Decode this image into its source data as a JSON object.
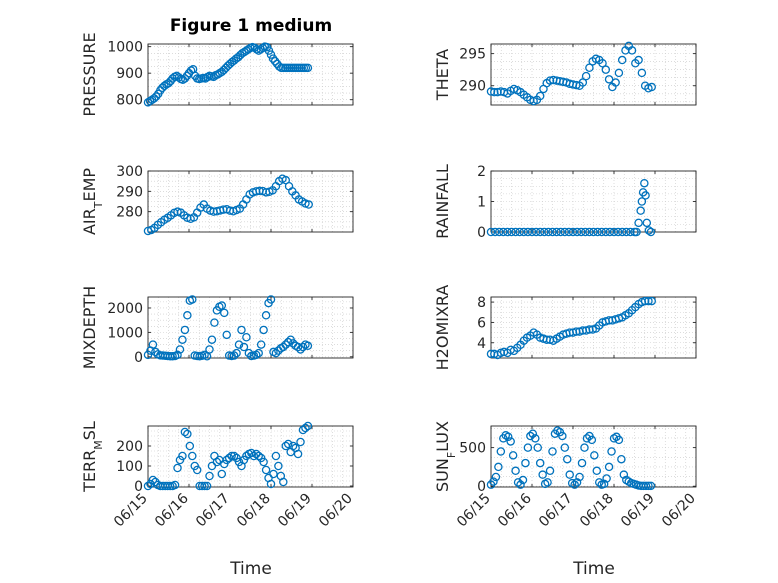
{
  "figure": {
    "title": "Figure 1 medium"
  },
  "colors": {
    "marker": "#0072BD",
    "axis": "#262626",
    "grid": "#c8c8c8"
  },
  "chart_data": [
    {
      "type": "scatter",
      "ylabel": "PRESSURE",
      "ylabel_sub": "",
      "ylabel_tail": "",
      "xlim": [
        0,
        5
      ],
      "ylim": [
        780,
        1010
      ],
      "yticks": [
        800,
        900,
        1000
      ],
      "x_tick_labels": [
        "06/15",
        "06/16",
        "06/17",
        "06/18",
        "06/19",
        "06/20"
      ],
      "grid": true,
      "title": "Figure 1 medium",
      "x": [
        0,
        0.05,
        0.1,
        0.15,
        0.2,
        0.25,
        0.3,
        0.35,
        0.4,
        0.45,
        0.5,
        0.55,
        0.6,
        0.65,
        0.7,
        0.75,
        0.8,
        0.85,
        0.9,
        0.95,
        1.0,
        1.05,
        1.1,
        1.15,
        1.2,
        1.25,
        1.3,
        1.35,
        1.4,
        1.45,
        1.5,
        1.55,
        1.6,
        1.65,
        1.7,
        1.75,
        1.8,
        1.85,
        1.9,
        1.95,
        2.0,
        2.05,
        2.1,
        2.15,
        2.2,
        2.25,
        2.3,
        2.35,
        2.4,
        2.45,
        2.5,
        2.55,
        2.6,
        2.65,
        2.7,
        2.75,
        2.8,
        2.85,
        2.9,
        2.95,
        3.0,
        3.05,
        3.1,
        3.15,
        3.2,
        3.25,
        3.3,
        3.35,
        3.4,
        3.45,
        3.5,
        3.55,
        3.6,
        3.65,
        3.7,
        3.75,
        3.8,
        3.85,
        3.9
      ],
      "y": [
        790,
        795,
        800,
        805,
        812,
        822,
        835,
        845,
        852,
        858,
        862,
        870,
        880,
        886,
        890,
        884,
        878,
        875,
        880,
        890,
        900,
        910,
        915,
        890,
        880,
        878,
        880,
        882,
        880,
        885,
        890,
        888,
        886,
        892,
        895,
        900,
        905,
        912,
        920,
        928,
        935,
        942,
        948,
        955,
        960,
        968,
        975,
        980,
        985,
        990,
        995,
        998,
        996,
        990,
        985,
        990,
        995,
        1000,
        998,
        985,
        970,
        955,
        945,
        935,
        925,
        920,
        920,
        920,
        920,
        920,
        920,
        920,
        920,
        920,
        920,
        920,
        920,
        920,
        920
      ]
    },
    {
      "type": "scatter",
      "ylabel": "THETA",
      "ylabel_sub": "",
      "ylabel_tail": "",
      "xlim": [
        0,
        5
      ],
      "ylim": [
        287,
        296.5
      ],
      "yticks": [
        290,
        295
      ],
      "x_tick_labels": [
        "06/15",
        "06/16",
        "06/17",
        "06/18",
        "06/19",
        "06/20"
      ],
      "grid": true,
      "x": [
        0,
        0.08,
        0.16,
        0.24,
        0.32,
        0.4,
        0.48,
        0.56,
        0.64,
        0.72,
        0.8,
        0.88,
        0.96,
        1.04,
        1.12,
        1.2,
        1.28,
        1.36,
        1.44,
        1.52,
        1.6,
        1.68,
        1.76,
        1.84,
        1.92,
        2.0,
        2.08,
        2.16,
        2.24,
        2.32,
        2.4,
        2.48,
        2.56,
        2.64,
        2.72,
        2.8,
        2.88,
        2.96,
        3.04,
        3.12,
        3.2,
        3.28,
        3.36,
        3.44,
        3.52,
        3.6,
        3.68,
        3.76,
        3.84,
        3.92
      ],
      "y": [
        289.1,
        289,
        289,
        289.1,
        289,
        288.8,
        289.2,
        289.5,
        289.3,
        289,
        288.6,
        288.2,
        287.8,
        287.6,
        287.8,
        288.4,
        289.5,
        290.4,
        290.8,
        290.9,
        290.8,
        290.7,
        290.6,
        290.5,
        290.3,
        290.2,
        290.1,
        290,
        290.5,
        291.5,
        292.8,
        293.8,
        294.2,
        294.0,
        293.5,
        292.5,
        291,
        289.8,
        290.5,
        292,
        294,
        295.5,
        296.2,
        295.5,
        293.5,
        294,
        292,
        290,
        289.6,
        289.8
      ]
    },
    {
      "type": "scatter",
      "ylabel": "AIR",
      "ylabel_sub": "T",
      "ylabel_tail": "EMP",
      "xlim": [
        0,
        5
      ],
      "ylim": [
        270,
        300
      ],
      "yticks": [
        280,
        290,
        300
      ],
      "x_tick_labels": [
        "06/15",
        "06/16",
        "06/17",
        "06/18",
        "06/19",
        "06/20"
      ],
      "grid": true,
      "x": [
        0,
        0.08,
        0.16,
        0.24,
        0.32,
        0.4,
        0.48,
        0.56,
        0.64,
        0.72,
        0.8,
        0.88,
        0.96,
        1.04,
        1.12,
        1.2,
        1.28,
        1.36,
        1.44,
        1.52,
        1.6,
        1.68,
        1.76,
        1.84,
        1.92,
        2.0,
        2.08,
        2.16,
        2.24,
        2.32,
        2.4,
        2.48,
        2.56,
        2.64,
        2.72,
        2.8,
        2.88,
        2.96,
        3.04,
        3.12,
        3.2,
        3.28,
        3.36,
        3.44,
        3.52,
        3.6,
        3.68,
        3.76,
        3.84,
        3.92
      ],
      "y": [
        270.5,
        271,
        272,
        273.5,
        274.8,
        276,
        277,
        278.2,
        279.4,
        280,
        279.5,
        278.2,
        277,
        276.5,
        277.2,
        279.5,
        282,
        283.5,
        281.5,
        280.5,
        280,
        280.2,
        280.6,
        281,
        281.2,
        280.5,
        280.2,
        280.8,
        281.5,
        283.5,
        286,
        288.5,
        289.5,
        290,
        290.2,
        290.1,
        289.5,
        289.8,
        290.5,
        292.5,
        295,
        296.2,
        295.5,
        292.5,
        290,
        288,
        286,
        285,
        284,
        283.5
      ]
    },
    {
      "type": "scatter",
      "ylabel": "RAINFALL",
      "ylabel_sub": "",
      "ylabel_tail": "",
      "xlim": [
        0,
        5
      ],
      "ylim": [
        0,
        2
      ],
      "yticks": [
        0,
        1,
        2
      ],
      "x_tick_labels": [
        "06/15",
        "06/16",
        "06/17",
        "06/18",
        "06/19",
        "06/20"
      ],
      "grid": true,
      "x": [
        0,
        0.1,
        0.2,
        0.3,
        0.4,
        0.5,
        0.6,
        0.7,
        0.8,
        0.9,
        1.0,
        1.1,
        1.2,
        1.3,
        1.4,
        1.5,
        1.6,
        1.7,
        1.8,
        1.9,
        2.0,
        2.1,
        2.2,
        2.3,
        2.4,
        2.5,
        2.6,
        2.7,
        2.8,
        2.9,
        3.0,
        3.1,
        3.2,
        3.3,
        3.4,
        3.5,
        3.55,
        3.6,
        3.65,
        3.68,
        3.71,
        3.74,
        3.77,
        3.8,
        3.85,
        3.9
      ],
      "y": [
        0,
        0,
        0,
        0,
        0,
        0,
        0,
        0,
        0,
        0,
        0,
        0,
        0,
        0,
        0,
        0,
        0,
        0,
        0,
        0,
        0,
        0,
        0,
        0,
        0,
        0,
        0,
        0,
        0,
        0,
        0,
        0,
        0,
        0,
        0,
        0,
        0,
        0.3,
        0.7,
        1.0,
        1.3,
        1.6,
        1.2,
        0.3,
        0.05,
        0
      ]
    },
    {
      "type": "scatter",
      "ylabel": "MIXDEPTH",
      "ylabel_sub": "",
      "ylabel_tail": "",
      "xlim": [
        0,
        5
      ],
      "ylim": [
        -50,
        2450
      ],
      "yticks": [
        0,
        1000,
        2000
      ],
      "x_tick_labels": [
        "06/15",
        "06/16",
        "06/17",
        "06/18",
        "06/19",
        "06/20"
      ],
      "grid": true,
      "x": [
        0,
        0.06,
        0.12,
        0.18,
        0.24,
        0.3,
        0.36,
        0.42,
        0.48,
        0.54,
        0.6,
        0.66,
        0.72,
        0.78,
        0.84,
        0.9,
        0.96,
        1.02,
        1.08,
        1.14,
        1.2,
        1.26,
        1.32,
        1.38,
        1.44,
        1.5,
        1.56,
        1.62,
        1.68,
        1.74,
        1.8,
        1.86,
        1.92,
        1.98,
        2.04,
        2.1,
        2.16,
        2.22,
        2.28,
        2.34,
        2.4,
        2.46,
        2.52,
        2.58,
        2.64,
        2.7,
        2.76,
        2.82,
        2.88,
        2.94,
        3.0,
        3.06,
        3.12,
        3.18,
        3.24,
        3.3,
        3.36,
        3.42,
        3.48,
        3.54,
        3.6,
        3.66,
        3.72,
        3.78,
        3.84,
        3.9
      ],
      "y": [
        80,
        250,
        500,
        200,
        100,
        60,
        50,
        40,
        30,
        20,
        20,
        30,
        80,
        300,
        700,
        1100,
        1700,
        2300,
        2350,
        50,
        30,
        20,
        40,
        80,
        20,
        300,
        700,
        1400,
        1900,
        2050,
        2100,
        1800,
        900,
        50,
        30,
        50,
        150,
        500,
        1100,
        400,
        800,
        150,
        30,
        50,
        80,
        150,
        500,
        1100,
        1700,
        2200,
        2350,
        200,
        150,
        250,
        350,
        400,
        500,
        600,
        700,
        550,
        450,
        400,
        300,
        400,
        500,
        450
      ]
    },
    {
      "type": "scatter",
      "ylabel": "H2OMIXRA",
      "ylabel_sub": "",
      "ylabel_tail": "",
      "xlim": [
        0,
        5
      ],
      "ylim": [
        2.5,
        8.5
      ],
      "yticks": [
        4,
        6,
        8
      ],
      "x_tick_labels": [
        "06/15",
        "06/16",
        "06/17",
        "06/18",
        "06/19",
        "06/20"
      ],
      "grid": true,
      "x": [
        0,
        0.08,
        0.16,
        0.24,
        0.32,
        0.4,
        0.48,
        0.56,
        0.64,
        0.72,
        0.8,
        0.88,
        0.96,
        1.04,
        1.12,
        1.2,
        1.28,
        1.36,
        1.44,
        1.52,
        1.6,
        1.68,
        1.76,
        1.84,
        1.92,
        2.0,
        2.08,
        2.16,
        2.24,
        2.32,
        2.4,
        2.48,
        2.56,
        2.64,
        2.72,
        2.8,
        2.88,
        2.96,
        3.04,
        3.12,
        3.2,
        3.28,
        3.36,
        3.44,
        3.52,
        3.6,
        3.68,
        3.76,
        3.84,
        3.92
      ],
      "y": [
        2.9,
        2.9,
        2.8,
        3.0,
        3.1,
        3.0,
        3.3,
        3.2,
        3.5,
        3.8,
        4.2,
        4.5,
        4.7,
        5.0,
        4.8,
        4.5,
        4.4,
        4.3,
        4.3,
        4.2,
        4.4,
        4.6,
        4.8,
        4.9,
        5.0,
        5.0,
        5.1,
        5.1,
        5.2,
        5.2,
        5.3,
        5.3,
        5.4,
        5.7,
        6.0,
        6.1,
        6.2,
        6.2,
        6.3,
        6.4,
        6.5,
        6.7,
        6.9,
        7.2,
        7.5,
        7.8,
        8.0,
        8.1,
        8.1,
        8.1
      ]
    },
    {
      "type": "scatter",
      "ylabel": "TERR",
      "ylabel_sub": "M",
      "ylabel_tail": "SL",
      "xlim": [
        0,
        5
      ],
      "ylim": [
        -5,
        300
      ],
      "yticks": [
        0,
        100,
        200
      ],
      "x_tick_labels": [
        "06/15",
        "06/16",
        "06/17",
        "06/18",
        "06/19",
        "06/20"
      ],
      "grid": true,
      "x": [
        0,
        0.06,
        0.12,
        0.18,
        0.24,
        0.3,
        0.36,
        0.42,
        0.48,
        0.54,
        0.6,
        0.66,
        0.72,
        0.78,
        0.84,
        0.9,
        0.96,
        1.02,
        1.08,
        1.14,
        1.2,
        1.26,
        1.32,
        1.38,
        1.44,
        1.5,
        1.56,
        1.62,
        1.68,
        1.74,
        1.8,
        1.86,
        1.92,
        1.98,
        2.04,
        2.1,
        2.16,
        2.22,
        2.28,
        2.34,
        2.4,
        2.46,
        2.52,
        2.58,
        2.64,
        2.7,
        2.76,
        2.82,
        2.88,
        2.94,
        3.0,
        3.06,
        3.12,
        3.18,
        3.24,
        3.3,
        3.36,
        3.42,
        3.48,
        3.54,
        3.6,
        3.66,
        3.72,
        3.78,
        3.84,
        3.9
      ],
      "y": [
        0,
        10,
        30,
        20,
        5,
        0,
        0,
        0,
        0,
        0,
        0,
        5,
        90,
        130,
        150,
        270,
        260,
        200,
        150,
        100,
        80,
        0,
        0,
        0,
        0,
        50,
        100,
        150,
        120,
        130,
        60,
        110,
        130,
        140,
        150,
        150,
        140,
        120,
        100,
        130,
        150,
        160,
        165,
        150,
        160,
        150,
        140,
        120,
        80,
        40,
        10,
        60,
        150,
        100,
        50,
        20,
        200,
        210,
        170,
        200,
        190,
        160,
        220,
        280,
        290,
        300
      ]
    },
    {
      "type": "scatter",
      "ylabel": "SUN",
      "ylabel_sub": "F",
      "ylabel_tail": "LUX",
      "xlim": [
        0,
        5
      ],
      "ylim": [
        -10,
        780
      ],
      "yticks": [
        0,
        500
      ],
      "x_tick_labels": [
        "06/15",
        "06/16",
        "06/17",
        "06/18",
        "06/19",
        "06/20"
      ],
      "grid": true,
      "x": [
        0,
        0.06,
        0.12,
        0.18,
        0.24,
        0.3,
        0.36,
        0.42,
        0.48,
        0.54,
        0.6,
        0.66,
        0.72,
        0.78,
        0.84,
        0.9,
        0.96,
        1.02,
        1.08,
        1.14,
        1.2,
        1.26,
        1.32,
        1.38,
        1.44,
        1.5,
        1.56,
        1.62,
        1.68,
        1.74,
        1.8,
        1.86,
        1.92,
        1.98,
        2.04,
        2.1,
        2.16,
        2.22,
        2.28,
        2.34,
        2.4,
        2.46,
        2.52,
        2.58,
        2.64,
        2.7,
        2.76,
        2.82,
        2.88,
        2.94,
        3.0,
        3.06,
        3.12,
        3.18,
        3.24,
        3.3,
        3.36,
        3.42,
        3.48,
        3.54,
        3.6,
        3.66,
        3.72,
        3.78,
        3.84,
        3.9
      ],
      "y": [
        20,
        60,
        120,
        250,
        450,
        620,
        660,
        640,
        580,
        400,
        200,
        50,
        20,
        80,
        300,
        500,
        650,
        680,
        620,
        500,
        300,
        150,
        30,
        50,
        200,
        450,
        680,
        720,
        700,
        650,
        500,
        350,
        150,
        40,
        20,
        50,
        120,
        300,
        500,
        620,
        650,
        600,
        400,
        200,
        50,
        20,
        30,
        100,
        250,
        450,
        620,
        640,
        600,
        350,
        150,
        80,
        60,
        40,
        30,
        20,
        10,
        5,
        5,
        5,
        5,
        5
      ]
    }
  ],
  "x_axis_label": "Time"
}
